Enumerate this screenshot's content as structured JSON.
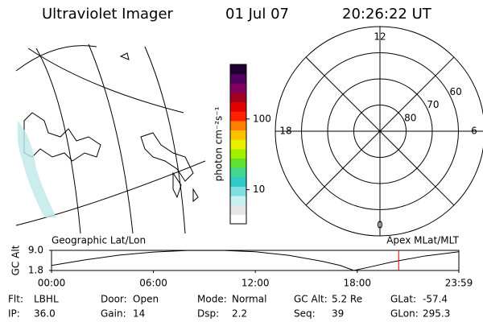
{
  "header": {
    "title": "Ultraviolet Imager",
    "date": "01 Jul 07",
    "time": "20:26:22 UT"
  },
  "map": {
    "label": "Geographic Lat/Lon"
  },
  "chart_data": [
    {
      "type": "colorbar",
      "label": "photon cm⁻²s⁻¹",
      "log": true,
      "ylim": [
        3.3,
        590
      ],
      "yticks": [
        10,
        100
      ],
      "colors": [
        "#ffffff",
        "#e6e6e6",
        "#c8f0f0",
        "#7ee0e0",
        "#30c8c8",
        "#40d890",
        "#60e030",
        "#a0f000",
        "#e8f000",
        "#ffc000",
        "#ff8000",
        "#ff2000",
        "#e00000",
        "#a00020",
        "#800060",
        "#500060",
        "#200030"
      ]
    },
    {
      "type": "polar",
      "label": "Apex MLat/MLT",
      "rlim": [
        90,
        50
      ],
      "rticks": [
        80,
        70,
        60
      ],
      "mlt_ticks": [
        0,
        6,
        12,
        18
      ]
    },
    {
      "type": "line",
      "ylabel": "GC Alt",
      "x": [
        0,
        2,
        4,
        6,
        8,
        10,
        12,
        14,
        16,
        17,
        17.8,
        19,
        20,
        22,
        23.98
      ],
      "values": [
        3.6,
        5.6,
        7.3,
        8.4,
        8.95,
        9.0,
        8.5,
        7.2,
        5.0,
        3.6,
        1.8,
        3.4,
        4.8,
        7.0,
        8.5
      ],
      "color": "#000000",
      "xlim": [
        0,
        23.983
      ],
      "xticks": [
        {
          "value": 0,
          "label": "00:00"
        },
        {
          "value": 6,
          "label": "06:00"
        },
        {
          "value": 12,
          "label": "12:00"
        },
        {
          "value": 18,
          "label": "18:00"
        },
        {
          "value": 23.983,
          "label": "23:59"
        }
      ],
      "ylim": [
        1.8,
        9.0
      ],
      "yticks": [
        {
          "value": 1.8,
          "label": "1.8"
        },
        {
          "value": 9.0,
          "label": "9.0"
        }
      ],
      "marker": 20.44,
      "marker_color": "#e00000"
    }
  ],
  "footer": {
    "rows": [
      [
        "Flt:",
        "LBHL",
        "Door:",
        "Open",
        "Mode:",
        "Normal",
        "GC Alt:",
        "5.2 Re",
        "GLat:",
        "-57.4"
      ],
      [
        "IP:",
        "36.0",
        "Gain:",
        "14",
        "Dsp:",
        "2.2",
        "Seq:",
        "39",
        "GLon:",
        "295.3"
      ]
    ]
  }
}
